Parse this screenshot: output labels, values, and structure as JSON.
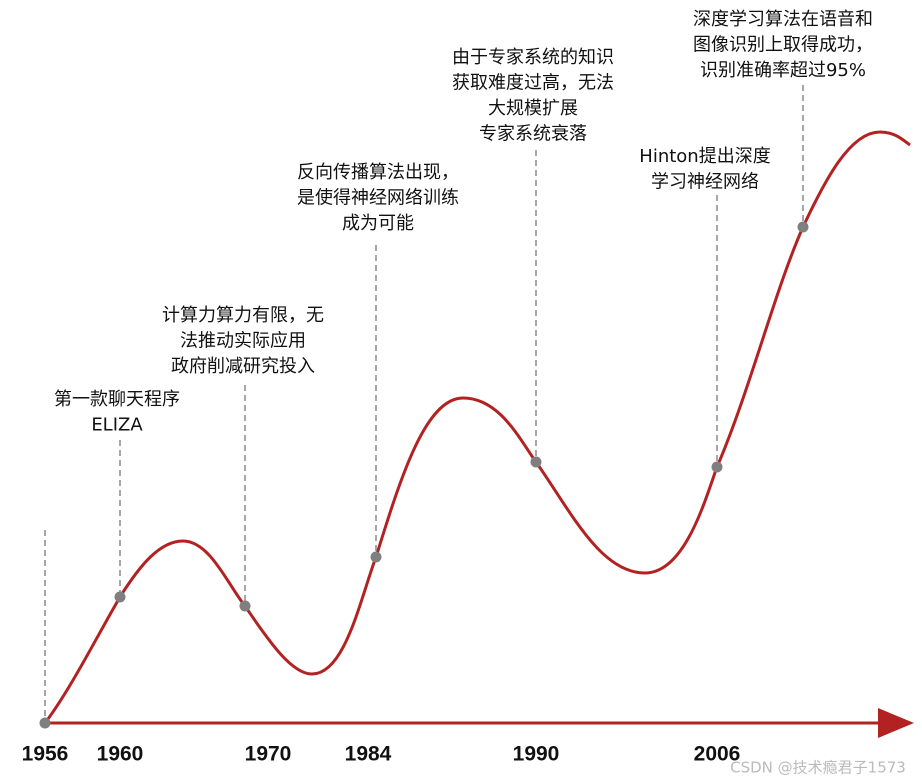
{
  "events": [
    {
      "year": "1956"
    },
    {
      "year": "1960",
      "lines": [
        "第一款聊天程序",
        "ELIZA"
      ]
    },
    {
      "year": "1970",
      "lines": [
        "计算力算力有限，无",
        "法推动实际应用",
        "政府削减研究投入"
      ]
    },
    {
      "year": "1984",
      "lines": [
        "反向传播算法出现，",
        "是使得神经网络训练",
        "成为可能"
      ]
    },
    {
      "year": "1990",
      "lines": [
        "由于专家系统的知识",
        "获取难度过高，无法",
        "大规模扩展",
        "专家系统衰落"
      ]
    },
    {
      "year": "2006",
      "lines": [
        "Hinton提出深度",
        "学习神经网络"
      ]
    },
    {
      "lines": [
        "深度学习算法在语音和",
        "图像识别上取得成功，",
        "识别准确率超过95%"
      ]
    }
  ],
  "watermark": "CSDN @技术瘾君子1573"
}
